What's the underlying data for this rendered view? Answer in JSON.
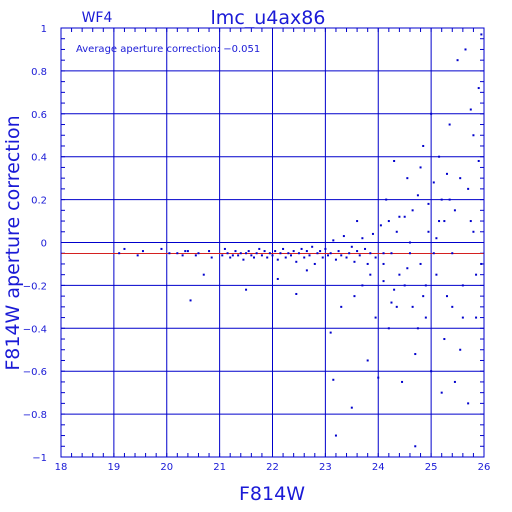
{
  "chart_data": {
    "type": "scatter",
    "panel_label": "WF4",
    "title": "lmc_u4ax86",
    "annotation": "Average aperture correction: −0.051",
    "xlabel": "F814W",
    "ylabel": "F814W aperture correction",
    "xlim": [
      18,
      26
    ],
    "ylim": [
      -1,
      1
    ],
    "x_ticks": [
      18,
      19,
      20,
      21,
      22,
      23,
      24,
      25,
      26
    ],
    "y_ticks": [
      -1,
      -0.8,
      -0.6,
      -0.4,
      -0.2,
      0,
      0.2,
      0.4,
      0.6,
      0.8,
      1
    ],
    "x_tick_labels": [
      "18",
      "19",
      "20",
      "21",
      "22",
      "23",
      "24",
      "25",
      "26"
    ],
    "y_tick_labels": [
      "−1",
      "−0.8",
      "−0.6",
      "−0.4",
      "−0.2",
      "0",
      "0.2",
      "0.4",
      "0.6",
      "0.8",
      "1"
    ],
    "grid": true,
    "reference_lines": [
      {
        "y": 0,
        "color": "#0000cc"
      },
      {
        "y": -0.051,
        "color": "#d42020"
      }
    ],
    "colors": {
      "axis": "#0000cc",
      "text": "#1a1ad6",
      "points": "#0000cc",
      "mean_line": "#d42020"
    },
    "series": [
      {
        "points": [
          [
            19.1,
            -0.05
          ],
          [
            19.2,
            -0.03
          ],
          [
            19.45,
            -0.06
          ],
          [
            19.55,
            -0.04
          ],
          [
            19.9,
            -0.03
          ],
          [
            20.05,
            -0.05
          ],
          [
            20.2,
            -0.05
          ],
          [
            20.3,
            -0.06
          ],
          [
            20.35,
            -0.04
          ],
          [
            20.4,
            -0.04
          ],
          [
            20.45,
            -0.27
          ],
          [
            20.55,
            -0.06
          ],
          [
            20.6,
            -0.05
          ],
          [
            20.7,
            -0.15
          ],
          [
            20.8,
            -0.04
          ],
          [
            20.85,
            -0.07
          ],
          [
            21.05,
            -0.06
          ],
          [
            21.1,
            -0.03
          ],
          [
            21.15,
            -0.05
          ],
          [
            21.2,
            -0.07
          ],
          [
            21.25,
            -0.06
          ],
          [
            21.3,
            -0.04
          ],
          [
            21.35,
            -0.06
          ],
          [
            21.4,
            -0.05
          ],
          [
            21.45,
            -0.08
          ],
          [
            21.5,
            -0.05
          ],
          [
            21.55,
            -0.04
          ],
          [
            21.6,
            -0.06
          ],
          [
            21.65,
            -0.07
          ],
          [
            21.7,
            -0.05
          ],
          [
            21.75,
            -0.03
          ],
          [
            21.8,
            -0.06
          ],
          [
            21.85,
            -0.04
          ],
          [
            21.9,
            -0.07
          ],
          [
            21.95,
            -0.05
          ],
          [
            22.0,
            -0.06
          ],
          [
            22.05,
            -0.04
          ],
          [
            22.1,
            -0.08
          ],
          [
            22.15,
            -0.05
          ],
          [
            22.2,
            -0.03
          ],
          [
            22.25,
            -0.07
          ],
          [
            22.3,
            -0.05
          ],
          [
            22.35,
            -0.06
          ],
          [
            22.4,
            -0.04
          ],
          [
            22.45,
            -0.09
          ],
          [
            22.5,
            -0.05
          ],
          [
            22.55,
            -0.03
          ],
          [
            22.6,
            -0.07
          ],
          [
            22.65,
            -0.04
          ],
          [
            22.7,
            -0.06
          ],
          [
            22.75,
            -0.02
          ],
          [
            22.8,
            -0.1
          ],
          [
            22.85,
            -0.05
          ],
          [
            22.9,
            -0.04
          ],
          [
            22.95,
            -0.07
          ],
          [
            23.0,
            -0.03
          ],
          [
            23.05,
            -0.06
          ],
          [
            23.1,
            -0.05
          ],
          [
            23.15,
            0.01
          ],
          [
            23.2,
            -0.08
          ],
          [
            23.25,
            -0.04
          ],
          [
            23.3,
            -0.06
          ],
          [
            23.35,
            0.03
          ],
          [
            23.4,
            -0.07
          ],
          [
            23.45,
            -0.05
          ],
          [
            23.5,
            -0.02
          ],
          [
            23.55,
            -0.09
          ],
          [
            23.6,
            -0.04
          ],
          [
            23.65,
            -0.06
          ],
          [
            23.7,
            0.02
          ],
          [
            23.75,
            -0.03
          ],
          [
            23.8,
            -0.1
          ],
          [
            23.85,
            -0.05
          ],
          [
            23.9,
            0.04
          ],
          [
            23.95,
            -0.07
          ],
          [
            21.5,
            -0.22
          ],
          [
            22.45,
            -0.24
          ],
          [
            22.65,
            -0.13
          ],
          [
            22.1,
            -0.17
          ],
          [
            23.1,
            -0.42
          ],
          [
            23.15,
            -0.64
          ],
          [
            23.2,
            -0.9
          ],
          [
            23.3,
            -0.3
          ],
          [
            23.5,
            -0.77
          ],
          [
            23.55,
            -0.25
          ],
          [
            23.6,
            0.1
          ],
          [
            23.7,
            -0.2
          ],
          [
            23.8,
            -0.55
          ],
          [
            23.85,
            -0.15
          ],
          [
            23.95,
            -0.35
          ],
          [
            24.0,
            -0.63
          ],
          [
            24.05,
            0.08
          ],
          [
            24.1,
            -0.18
          ],
          [
            24.15,
            0.2
          ],
          [
            24.2,
            -0.4
          ],
          [
            24.25,
            -0.05
          ],
          [
            24.3,
            0.38
          ],
          [
            24.35,
            -0.3
          ],
          [
            24.4,
            0.12
          ],
          [
            24.45,
            -0.65
          ],
          [
            24.5,
            -0.2
          ],
          [
            24.55,
            0.3
          ],
          [
            24.6,
            -0.05
          ],
          [
            24.65,
            0.15
          ],
          [
            24.7,
            -0.52
          ],
          [
            24.75,
            0.22
          ],
          [
            24.8,
            -0.1
          ],
          [
            24.85,
            0.45
          ],
          [
            24.9,
            -0.35
          ],
          [
            24.95,
            0.05
          ],
          [
            25.0,
            -0.6
          ],
          [
            25.05,
            0.28
          ],
          [
            25.1,
            -0.15
          ],
          [
            25.15,
            0.4
          ],
          [
            25.2,
            -0.7
          ],
          [
            25.25,
            0.1
          ],
          [
            25.3,
            -0.25
          ],
          [
            25.35,
            0.55
          ],
          [
            25.4,
            -0.05
          ],
          [
            25.45,
            -0.65
          ],
          [
            25.5,
            0.85
          ],
          [
            25.55,
            0.3
          ],
          [
            25.6,
            -0.2
          ],
          [
            25.65,
            0.9
          ],
          [
            25.7,
            -0.75
          ],
          [
            25.75,
            0.62
          ],
          [
            25.8,
            0.05
          ],
          [
            25.85,
            -0.35
          ],
          [
            25.9,
            0.38
          ],
          [
            25.95,
            0.97
          ],
          [
            24.25,
            -0.28
          ],
          [
            24.35,
            0.05
          ],
          [
            24.5,
            0.12
          ],
          [
            24.65,
            -0.3
          ],
          [
            24.8,
            0.35
          ],
          [
            24.9,
            -0.2
          ],
          [
            25.05,
            -0.05
          ],
          [
            25.15,
            0.1
          ],
          [
            25.25,
            -0.45
          ],
          [
            25.35,
            0.2
          ],
          [
            25.55,
            -0.5
          ],
          [
            25.7,
            0.25
          ],
          [
            25.85,
            -0.15
          ],
          [
            24.1,
            -0.1
          ],
          [
            24.3,
            -0.22
          ],
          [
            24.4,
            -0.15
          ],
          [
            24.6,
            0.0
          ],
          [
            24.75,
            -0.4
          ],
          [
            24.95,
            0.18
          ],
          [
            25.1,
            0.02
          ],
          [
            25.3,
            0.32
          ],
          [
            25.45,
            0.15
          ],
          [
            25.6,
            -0.35
          ],
          [
            25.8,
            0.5
          ],
          [
            25.95,
            -0.1
          ],
          [
            25.0,
            0.6
          ],
          [
            24.7,
            -0.95
          ],
          [
            24.1,
            -0.05
          ],
          [
            24.2,
            0.1
          ],
          [
            24.55,
            -0.12
          ],
          [
            24.85,
            -0.25
          ],
          [
            25.2,
            0.2
          ],
          [
            25.4,
            -0.3
          ],
          [
            25.75,
            0.1
          ],
          [
            25.9,
            0.72
          ]
        ]
      }
    ]
  }
}
